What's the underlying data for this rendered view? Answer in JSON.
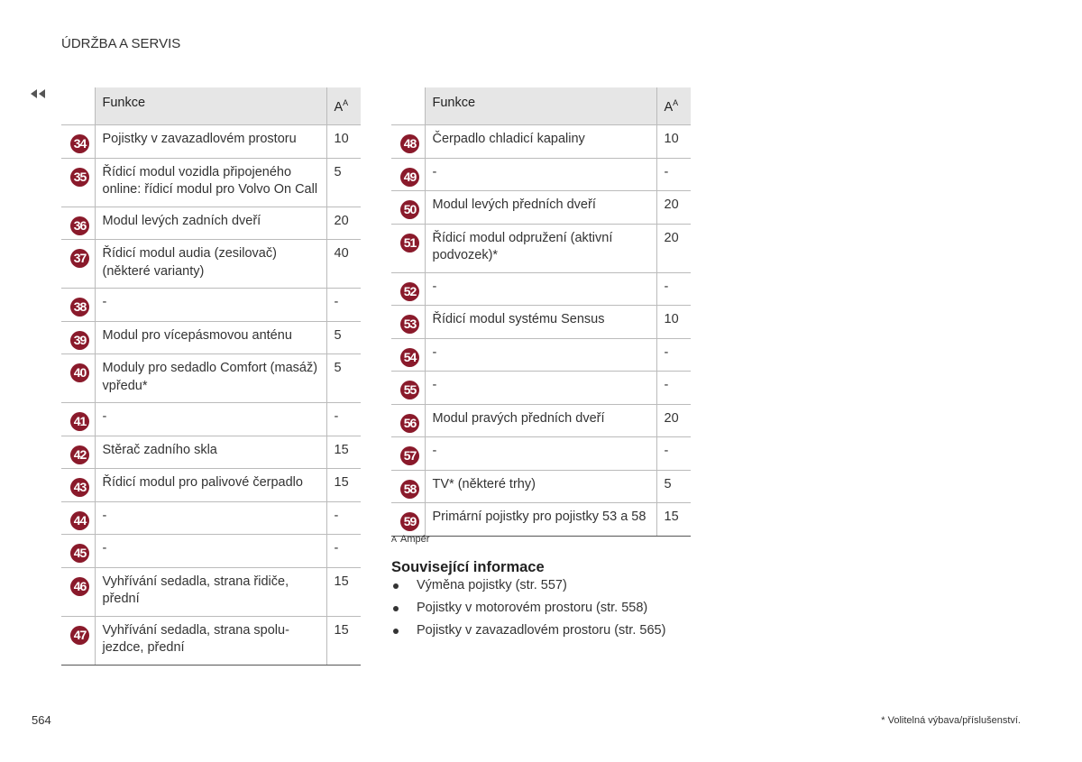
{
  "header": {
    "title": "ÚDRŽBA A SERVIS"
  },
  "tables": [
    {
      "columns": {
        "function": "Funkce",
        "amps": "A",
        "amps_note": "A"
      },
      "rows": [
        {
          "number": "34",
          "function": "Pojistky v zavazadlovém prostoru",
          "amps": "10"
        },
        {
          "number": "35",
          "function": "Řídicí modul vozidla připojeného online: řídicí modul pro Volvo On Call",
          "amps": "5"
        },
        {
          "number": "36",
          "function": "Modul levých zadních dveří",
          "amps": "20"
        },
        {
          "number": "37",
          "function": "Řídicí modul audia (zesilovač) (některé varianty)",
          "amps": "40"
        },
        {
          "number": "38",
          "function": "-",
          "amps": "-"
        },
        {
          "number": "39",
          "function": "Modul pro vícepásmovou anténu",
          "amps": "5"
        },
        {
          "number": "40",
          "function": "Moduly pro sedadlo Comfort (masáž) vpředu*",
          "amps": "5"
        },
        {
          "number": "41",
          "function": "-",
          "amps": "-"
        },
        {
          "number": "42",
          "function": "Stěrač zadního skla",
          "amps": "15"
        },
        {
          "number": "43",
          "function": "Řídicí modul pro palivové čerpadlo",
          "amps": "15"
        },
        {
          "number": "44",
          "function": "-",
          "amps": "-"
        },
        {
          "number": "45",
          "function": "-",
          "amps": "-"
        },
        {
          "number": "46",
          "function": "Vyhřívání sedadla, strana řidiče, přední",
          "amps": "15"
        },
        {
          "number": "47",
          "function": "Vyhřívání sedadla, strana spolu-jezdce, přední",
          "amps": "15"
        }
      ]
    },
    {
      "columns": {
        "function": "Funkce",
        "amps": "A",
        "amps_note": "A"
      },
      "rows": [
        {
          "number": "48",
          "function": "Čerpadlo chladicí kapaliny",
          "amps": "10"
        },
        {
          "number": "49",
          "function": "-",
          "amps": "-"
        },
        {
          "number": "50",
          "function": "Modul levých předních dveří",
          "amps": "20"
        },
        {
          "number": "51",
          "function": "Řídicí modul odpružení (aktivní podvozek)*",
          "amps": "20"
        },
        {
          "number": "52",
          "function": "-",
          "amps": "-"
        },
        {
          "number": "53",
          "function": "Řídicí modul systému Sensus",
          "amps": "10"
        },
        {
          "number": "54",
          "function": "-",
          "amps": "-"
        },
        {
          "number": "55",
          "function": "-",
          "amps": "-"
        },
        {
          "number": "56",
          "function": "Modul pravých předních dveří",
          "amps": "20"
        },
        {
          "number": "57",
          "function": "-",
          "amps": "-"
        },
        {
          "number": "58",
          "function": "TV* (některé trhy)",
          "amps": "5"
        },
        {
          "number": "59",
          "function": "Primární pojistky pro pojistky 53 a 58",
          "amps": "15"
        }
      ]
    }
  ],
  "footnote": {
    "marker": "A",
    "text": "Ampér"
  },
  "related": {
    "title": "Související informace",
    "items": [
      "Výměna pojistky (str. 557)",
      "Pojistky v motorovém prostoru (str. 558)",
      "Pojistky v zavazadlovém prostoru (str. 565)"
    ]
  },
  "footer": {
    "page": "564",
    "note": "* Volitelná výbava/příslušenství."
  }
}
